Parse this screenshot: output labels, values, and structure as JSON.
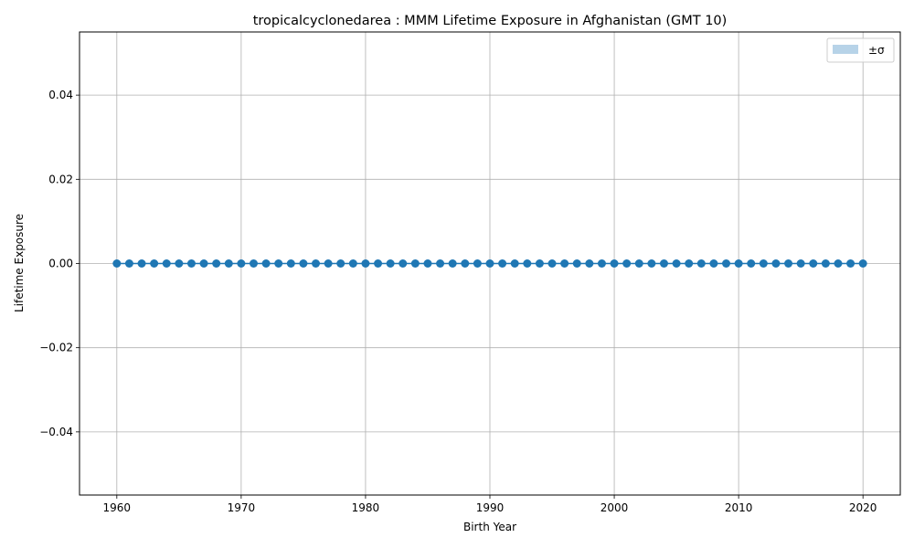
{
  "chart_data": {
    "type": "line",
    "title": "tropicalcyclonedarea : MMM Lifetime Exposure in Afghanistan (GMT 10)",
    "xlabel": "Birth Year",
    "ylabel": "Lifetime Exposure",
    "xlim": [
      1957,
      2023
    ],
    "ylim": [
      -0.055,
      0.055
    ],
    "x_ticks": [
      1960,
      1970,
      1980,
      1990,
      2000,
      2010,
      2020
    ],
    "y_ticks": [
      -0.04,
      -0.02,
      0.0,
      0.02,
      0.04
    ],
    "y_tick_labels": [
      "−0.04",
      "−0.02",
      "0.00",
      "0.02",
      "0.04"
    ],
    "grid": true,
    "legend_position": "top-right",
    "legend": [
      {
        "label": "±σ",
        "color": "#b7d3e8",
        "kind": "band"
      }
    ],
    "series": [
      {
        "color": "#1f77b4",
        "marker": "circle",
        "x": [
          1960,
          1961,
          1962,
          1963,
          1964,
          1965,
          1966,
          1967,
          1968,
          1969,
          1970,
          1971,
          1972,
          1973,
          1974,
          1975,
          1976,
          1977,
          1978,
          1979,
          1980,
          1981,
          1982,
          1983,
          1984,
          1985,
          1986,
          1987,
          1988,
          1989,
          1990,
          1991,
          1992,
          1993,
          1994,
          1995,
          1996,
          1997,
          1998,
          1999,
          2000,
          2001,
          2002,
          2003,
          2004,
          2005,
          2006,
          2007,
          2008,
          2009,
          2010,
          2011,
          2012,
          2013,
          2014,
          2015,
          2016,
          2017,
          2018,
          2019,
          2020
        ],
        "y": [
          0,
          0,
          0,
          0,
          0,
          0,
          0,
          0,
          0,
          0,
          0,
          0,
          0,
          0,
          0,
          0,
          0,
          0,
          0,
          0,
          0,
          0,
          0,
          0,
          0,
          0,
          0,
          0,
          0,
          0,
          0,
          0,
          0,
          0,
          0,
          0,
          0,
          0,
          0,
          0,
          0,
          0,
          0,
          0,
          0,
          0,
          0,
          0,
          0,
          0,
          0,
          0,
          0,
          0,
          0,
          0,
          0,
          0,
          0,
          0,
          0
        ]
      }
    ]
  }
}
